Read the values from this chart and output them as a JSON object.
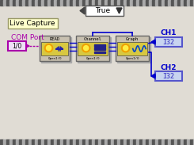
{
  "bg_color": "#d4d0c8",
  "panel_bg": "#e0dcd4",
  "title": "Live Capture",
  "true_label": "True",
  "com_label": "COM Port",
  "ch1_label": "CH1",
  "ch2_label": "CH2",
  "i32_color": "#5555cc",
  "i32_bg": "#c8d4f0",
  "com_port_text": "1/0",
  "com_port_color": "#aa00aa",
  "com_port_bg": "#f0e0f8",
  "block_border": "#808080",
  "wire_blue": "#0000cc",
  "wire_purple": "#aa00aa",
  "true_bg": "#ffffff",
  "true_border": "#555555"
}
